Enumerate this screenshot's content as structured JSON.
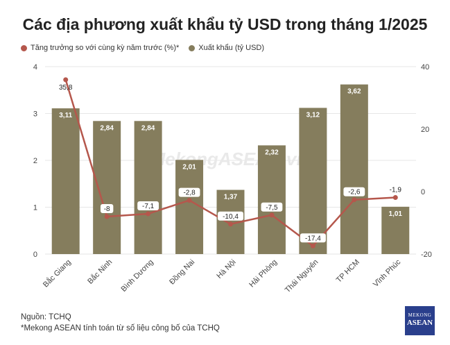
{
  "title": "Các địa phương xuất khẩu tỷ USD trong tháng 1/2025",
  "legend": {
    "growth_label": "Tăng trưởng so với cùng kỳ năm trước (%)*",
    "export_label": "Xuất khẩu (tỷ USD)"
  },
  "watermark": "MekongASEAN.vn",
  "footer": {
    "source": "Nguồn: TCHQ",
    "note": "*Mekong ASEAN tính toán từ số liệu công bố của TCHQ"
  },
  "logo": {
    "line1": "MEKONG",
    "line2": "ASEAN"
  },
  "colors": {
    "bar": "#857d5d",
    "line": "#b5574c",
    "grid": "#e6e6e6",
    "axis_text": "#444444"
  },
  "chart_data": {
    "type": "bar",
    "categories": [
      "Bắc Giang",
      "Bắc Ninh",
      "Bình Dương",
      "Đồng Nai",
      "Hà Nội",
      "Hải Phòng",
      "Thái Nguyên",
      "TP HCM",
      "Vĩnh Phúc"
    ],
    "series": [
      {
        "name": "Xuất khẩu (tỷ USD)",
        "type": "bar",
        "axis": "left",
        "values": [
          3.11,
          2.84,
          2.84,
          2.01,
          1.37,
          2.32,
          3.12,
          3.62,
          1.01
        ],
        "labels": [
          "3,11",
          "2,84",
          "2,84",
          "2,01",
          "1,37",
          "2,32",
          "3,12",
          "3,62",
          "1,01"
        ]
      },
      {
        "name": "Tăng trưởng so với cùng kỳ năm trước (%)*",
        "type": "line",
        "axis": "right",
        "values": [
          35.8,
          -8,
          -7.1,
          -2.8,
          -10.4,
          -7.5,
          -17.4,
          -2.6,
          -1.9
        ],
        "labels": [
          "35,8",
          "-8",
          "-7,1",
          "-2,8",
          "-10,4",
          "-7,5",
          "-17,4",
          "-2,6",
          "-1,9"
        ]
      }
    ],
    "y_left": {
      "ylim": [
        0,
        4
      ],
      "ticks": [
        "0",
        "1",
        "2",
        "3",
        "4"
      ]
    },
    "y_right": {
      "ylim": [
        -20,
        40
      ],
      "ticks": [
        "-20",
        "0",
        "20",
        "40"
      ]
    },
    "grid": true,
    "legend_position": "top-left"
  }
}
